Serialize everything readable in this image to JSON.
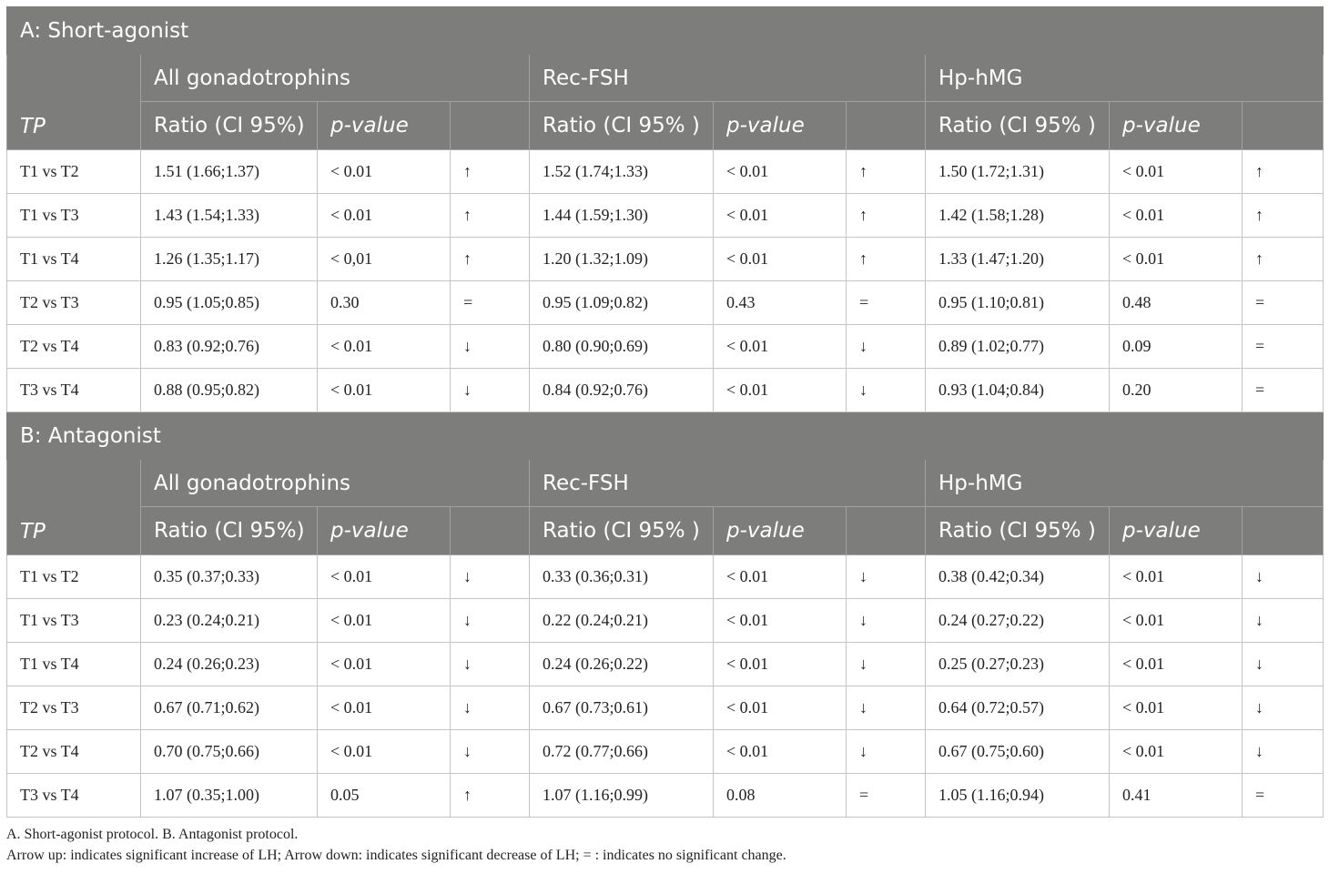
{
  "sections": [
    {
      "title": "A: Short-agonist",
      "tp_label": "TP",
      "groups": [
        "All gonadotrophins",
        "Rec-FSH",
        "Hp-hMG"
      ],
      "subheaders": [
        "Ratio (CI 95%)",
        "p-value",
        "Ratio (CI 95% )",
        "p-value",
        "Ratio (CI 95% )",
        "p-value"
      ],
      "rows": [
        [
          "T1 vs T2",
          "1.51 (1.66;1.37)",
          "< 0.01",
          "↑",
          "1.52 (1.74;1.33)",
          "< 0.01",
          "↑",
          "1.50 (1.72;1.31)",
          "< 0.01",
          "↑"
        ],
        [
          "T1 vs T3",
          "1.43 (1.54;1.33)",
          "< 0.01",
          "↑",
          "1.44 (1.59;1.30)",
          "< 0.01",
          "↑",
          "1.42 (1.58;1.28)",
          "< 0.01",
          "↑"
        ],
        [
          "T1 vs T4",
          "1.26 (1.35;1.17)",
          "< 0,01",
          "↑",
          "1.20 (1.32;1.09)",
          "< 0.01",
          "↑",
          "1.33 (1.47;1.20)",
          "< 0.01",
          "↑"
        ],
        [
          "T2 vs T3",
          "0.95 (1.05;0.85)",
          "0.30",
          "=",
          "0.95 (1.09;0.82)",
          "0.43",
          "=",
          "0.95 (1.10;0.81)",
          "0.48",
          "="
        ],
        [
          "T2 vs T4",
          "0.83 (0.92;0.76)",
          "< 0.01",
          "↓",
          "0.80 (0.90;0.69)",
          "< 0.01",
          "↓",
          "0.89 (1.02;0.77)",
          "0.09",
          "="
        ],
        [
          "T3 vs T4",
          "0.88 (0.95;0.82)",
          "< 0.01",
          "↓",
          "0.84 (0.92;0.76)",
          "< 0.01",
          "↓",
          "0.93 (1.04;0.84)",
          "0.20",
          "="
        ]
      ]
    },
    {
      "title": "B: Antagonist",
      "tp_label": "TP",
      "groups": [
        "All gonadotrophins",
        "Rec-FSH",
        "Hp-hMG"
      ],
      "subheaders": [
        "Ratio (CI 95%)",
        "p-value",
        "Ratio (CI 95% )",
        "p-value",
        "Ratio (CI 95% )",
        "p-value"
      ],
      "rows": [
        [
          "T1 vs T2",
          "0.35 (0.37;0.33)",
          "< 0.01",
          "↓",
          "0.33 (0.36;0.31)",
          "< 0.01",
          "↓",
          "0.38 (0.42;0.34)",
          "< 0.01",
          "↓"
        ],
        [
          "T1 vs T3",
          "0.23 (0.24;0.21)",
          "< 0.01",
          "↓",
          "0.22 (0.24;0.21)",
          "< 0.01",
          "↓",
          "0.24 (0.27;0.22)",
          "< 0.01",
          "↓"
        ],
        [
          "T1 vs T4",
          "0.24 (0.26;0.23)",
          "< 0.01",
          "↓",
          "0.24 (0.26;0.22)",
          "< 0.01",
          "↓",
          "0.25 (0.27;0.23)",
          "< 0.01",
          "↓"
        ],
        [
          "T2 vs T3",
          "0.67 (0.71;0.62)",
          "< 0.01",
          "↓",
          "0.67 (0.73;0.61)",
          "< 0.01",
          "↓",
          "0.64 (0.72;0.57)",
          "< 0.01",
          "↓"
        ],
        [
          "T2 vs T4",
          "0.70 (0.75;0.66)",
          "< 0.01",
          "↓",
          "0.72 (0.77;0.66)",
          "< 0.01",
          "↓",
          "0.67 (0.75;0.60)",
          "< 0.01",
          "↓"
        ],
        [
          "T3 vs T4",
          "1.07 (0.35;1.00)",
          "0.05",
          "↑",
          "1.07 (1.16;0.99)",
          "0.08",
          "=",
          "1.05 (1.16;0.94)",
          "0.41",
          "="
        ]
      ]
    }
  ],
  "footnotes": [
    "A. Short-agonist protocol. B. Antagonist protocol.",
    "Arrow up: indicates significant increase of LH; Arrow down: indicates significant decrease of LH; = : indicates no significant change."
  ]
}
